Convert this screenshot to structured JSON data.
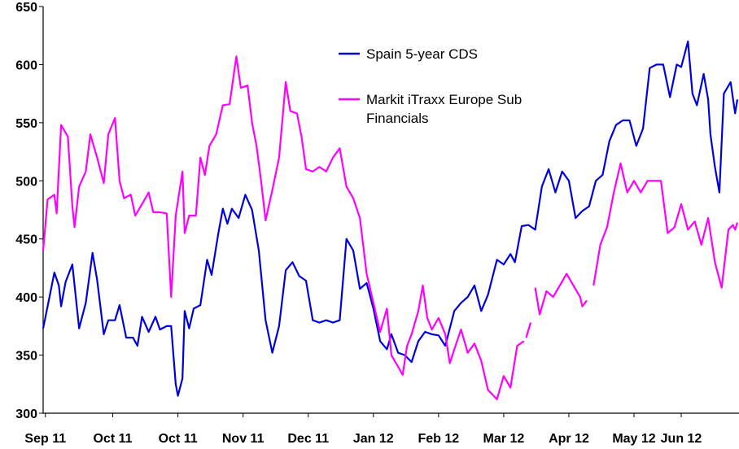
{
  "chart_data": {
    "type": "line",
    "title": "",
    "xlabel": "",
    "ylabel": "",
    "ylim": [
      300,
      650
    ],
    "yticks": [
      300,
      350,
      400,
      450,
      500,
      550,
      600,
      650
    ],
    "xlim": [
      "2011-08-31",
      "2012-06-22"
    ],
    "xtick_labels": [
      "Sep 11",
      "Oct 11",
      "Oct 11",
      "Nov 11",
      "Dec 11",
      "Jan 12",
      "Feb 12",
      "Mar 12",
      "Apr 12",
      "May 12",
      "Jun 12"
    ],
    "xtick_dates": [
      "2011-09-01",
      "2011-10-01",
      "2011-10-30",
      "2011-11-28",
      "2011-12-27",
      "2012-01-25",
      "2012-02-23",
      "2012-03-23",
      "2012-04-21",
      "2012-05-20",
      "2012-06-10"
    ],
    "grid": false,
    "legend_position": "top-right",
    "series": [
      {
        "name": "Spain 5-year CDS",
        "color": "#0000dd",
        "points": [
          [
            "2011-08-31",
            373
          ],
          [
            "2011-09-02",
            392
          ],
          [
            "2011-09-05",
            421
          ],
          [
            "2011-09-07",
            410
          ],
          [
            "2011-09-08",
            392
          ],
          [
            "2011-09-10",
            413
          ],
          [
            "2011-09-13",
            428
          ],
          [
            "2011-09-16",
            373
          ],
          [
            "2011-09-19",
            395
          ],
          [
            "2011-09-22",
            438
          ],
          [
            "2011-09-24",
            415
          ],
          [
            "2011-09-27",
            368
          ],
          [
            "2011-09-29",
            380
          ],
          [
            "2011-10-02",
            380
          ],
          [
            "2011-10-04",
            393
          ],
          [
            "2011-10-07",
            365
          ],
          [
            "2011-10-10",
            365
          ],
          [
            "2011-10-12",
            358
          ],
          [
            "2011-10-14",
            383
          ],
          [
            "2011-10-17",
            370
          ],
          [
            "2011-10-20",
            383
          ],
          [
            "2011-10-22",
            372
          ],
          [
            "2011-10-25",
            375
          ],
          [
            "2011-10-27",
            375
          ],
          [
            "2011-10-29",
            325
          ],
          [
            "2011-10-30",
            315
          ],
          [
            "2011-11-01",
            330
          ],
          [
            "2011-11-02",
            388
          ],
          [
            "2011-11-04",
            373
          ],
          [
            "2011-11-06",
            390
          ],
          [
            "2011-11-09",
            393
          ],
          [
            "2011-11-12",
            432
          ],
          [
            "2011-11-14",
            419
          ],
          [
            "2011-11-17",
            455
          ],
          [
            "2011-11-19",
            476
          ],
          [
            "2011-11-21",
            463
          ],
          [
            "2011-11-23",
            476
          ],
          [
            "2011-11-26",
            468
          ],
          [
            "2011-11-29",
            488
          ],
          [
            "2011-12-02",
            475
          ],
          [
            "2011-12-05",
            440
          ],
          [
            "2011-12-08",
            380
          ],
          [
            "2011-12-11",
            352
          ],
          [
            "2011-12-14",
            375
          ],
          [
            "2011-12-17",
            423
          ],
          [
            "2011-12-20",
            430
          ],
          [
            "2011-12-23",
            418
          ],
          [
            "2011-12-26",
            414
          ],
          [
            "2011-12-29",
            380
          ],
          [
            "2012-01-01",
            378
          ],
          [
            "2012-01-04",
            380
          ],
          [
            "2012-01-07",
            378
          ],
          [
            "2012-01-10",
            380
          ],
          [
            "2012-01-13",
            450
          ],
          [
            "2012-01-16",
            440
          ],
          [
            "2012-01-19",
            407
          ],
          [
            "2012-01-22",
            412
          ],
          [
            "2012-01-25",
            390
          ],
          [
            "2012-01-28",
            362
          ],
          [
            "2012-01-31",
            355
          ],
          [
            "2012-02-02",
            368
          ],
          [
            "2012-02-05",
            352
          ],
          [
            "2012-02-08",
            350
          ],
          [
            "2012-02-11",
            344
          ],
          [
            "2012-02-14",
            362
          ],
          [
            "2012-02-17",
            370
          ],
          [
            "2012-02-20",
            368
          ],
          [
            "2012-02-23",
            367
          ],
          [
            "2012-02-26",
            358
          ],
          [
            "2012-03-01",
            388
          ],
          [
            "2012-03-04",
            395
          ],
          [
            "2012-03-07",
            400
          ],
          [
            "2012-03-10",
            410
          ],
          [
            "2012-03-13",
            388
          ],
          [
            "2012-03-16",
            402
          ],
          [
            "2012-03-20",
            432
          ],
          [
            "2012-03-23",
            428
          ],
          [
            "2012-03-26",
            437
          ],
          [
            "2012-03-28",
            430
          ],
          [
            "2012-03-31",
            461
          ],
          [
            "2012-04-03",
            462
          ],
          [
            "2012-04-06",
            458
          ],
          [
            "2012-04-09",
            495
          ],
          [
            "2012-04-12",
            510
          ],
          [
            "2012-04-15",
            490
          ],
          [
            "2012-04-18",
            508
          ],
          [
            "2012-04-21",
            500
          ],
          [
            "2012-04-24",
            468
          ],
          [
            "2012-04-27",
            474
          ],
          [
            "2012-04-30",
            478
          ],
          [
            "2012-05-03",
            500
          ],
          [
            "2012-05-06",
            505
          ],
          [
            "2012-05-09",
            534
          ],
          [
            "2012-05-12",
            548
          ],
          [
            "2012-05-15",
            552
          ],
          [
            "2012-05-18",
            552
          ],
          [
            "2012-05-21",
            530
          ],
          [
            "2012-05-24",
            545
          ],
          [
            "2012-05-27",
            597
          ],
          [
            "2012-05-30",
            600
          ],
          [
            "2012-06-02",
            600
          ],
          [
            "2012-06-05",
            572
          ],
          [
            "2012-06-08",
            600
          ],
          [
            "2012-06-10",
            598
          ],
          [
            "2012-06-13",
            620
          ],
          [
            "2012-06-15",
            575
          ],
          [
            "2012-06-17",
            565
          ],
          [
            "2012-06-20",
            592
          ],
          [
            "2012-06-22",
            570
          ],
          [
            "2012-06-23",
            540
          ],
          [
            "2012-06-25",
            512
          ],
          [
            "2012-06-27",
            490
          ],
          [
            "2012-06-29",
            575
          ],
          [
            "2012-07-02",
            585
          ],
          [
            "2012-07-04",
            558
          ],
          [
            "2012-07-05",
            570
          ]
        ]
      },
      {
        "name": "Markit iTraxx Europe Sub Financials",
        "color": "#ff00ff",
        "segments": [
          [
            [
              "2011-08-31",
              440
            ],
            [
              "2011-09-02",
              484
            ],
            [
              "2011-09-05",
              488
            ],
            [
              "2011-09-06",
              472
            ],
            [
              "2011-09-08",
              548
            ],
            [
              "2011-09-11",
              538
            ],
            [
              "2011-09-13",
              478
            ],
            [
              "2011-09-14",
              460
            ],
            [
              "2011-09-16",
              495
            ],
            [
              "2011-09-19",
              508
            ],
            [
              "2011-09-21",
              540
            ],
            [
              "2011-09-24",
              520
            ],
            [
              "2011-09-27",
              498
            ],
            [
              "2011-09-29",
              540
            ],
            [
              "2011-10-02",
              554
            ],
            [
              "2011-10-04",
              500
            ],
            [
              "2011-10-06",
              485
            ],
            [
              "2011-10-09",
              488
            ],
            [
              "2011-10-11",
              470
            ],
            [
              "2011-10-14",
              480
            ],
            [
              "2011-10-17",
              490
            ],
            [
              "2011-10-19",
              473
            ],
            [
              "2011-10-22",
              473
            ],
            [
              "2011-10-25",
              472
            ],
            [
              "2011-10-27",
              400
            ],
            [
              "2011-10-29",
              470
            ],
            [
              "2011-11-01",
              508
            ],
            [
              "2011-11-02",
              455
            ],
            [
              "2011-11-04",
              470
            ],
            [
              "2011-11-07",
              470
            ],
            [
              "2011-11-09",
              520
            ],
            [
              "2011-11-11",
              505
            ],
            [
              "2011-11-13",
              530
            ],
            [
              "2011-11-16",
              540
            ],
            [
              "2011-11-19",
              565
            ],
            [
              "2011-11-22",
              566
            ],
            [
              "2011-11-25",
              607
            ],
            [
              "2011-11-27",
              580
            ],
            [
              "2011-11-30",
              582
            ],
            [
              "2011-12-02",
              550
            ],
            [
              "2011-12-04",
              530
            ],
            [
              "2011-12-06",
              500
            ],
            [
              "2011-12-08",
              466
            ],
            [
              "2011-12-11",
              492
            ],
            [
              "2011-12-14",
              520
            ],
            [
              "2011-12-17",
              585
            ],
            [
              "2011-12-19",
              560
            ],
            [
              "2011-12-22",
              558
            ],
            [
              "2011-12-24",
              538
            ],
            [
              "2011-12-26",
              510
            ],
            [
              "2011-12-29",
              508
            ],
            [
              "2012-01-01",
              512
            ],
            [
              "2012-01-04",
              508
            ],
            [
              "2012-01-07",
              520
            ],
            [
              "2012-01-10",
              528
            ],
            [
              "2012-01-13",
              495
            ],
            [
              "2012-01-16",
              485
            ],
            [
              "2012-01-19",
              468
            ],
            [
              "2012-01-22",
              420
            ],
            [
              "2012-01-25",
              395
            ],
            [
              "2012-01-28",
              370
            ],
            [
              "2012-01-31",
              390
            ],
            [
              "2012-02-02",
              350
            ],
            [
              "2012-02-05",
              340
            ],
            [
              "2012-02-07",
              333
            ],
            [
              "2012-02-09",
              358
            ],
            [
              "2012-02-11",
              368
            ],
            [
              "2012-02-14",
              388
            ],
            [
              "2012-02-16",
              410
            ],
            [
              "2012-02-18",
              382
            ],
            [
              "2012-02-20",
              372
            ],
            [
              "2012-02-23",
              382
            ],
            [
              "2012-02-26",
              368
            ],
            [
              "2012-02-28",
              343
            ],
            [
              "2012-03-01",
              355
            ],
            [
              "2012-03-04",
              372
            ],
            [
              "2012-03-07",
              352
            ],
            [
              "2012-03-10",
              360
            ],
            [
              "2012-03-13",
              345
            ],
            [
              "2012-03-16",
              320
            ],
            [
              "2012-03-20",
              312
            ],
            [
              "2012-03-23",
              332
            ],
            [
              "2012-03-26",
              322
            ],
            [
              "2012-03-29",
              358
            ],
            [
              "2012-04-01",
              362
            ]
          ],
          [
            [
              "2012-04-02",
              365
            ],
            [
              "2012-04-04",
              378
            ]
          ],
          [
            [
              "2012-04-06",
              408
            ],
            [
              "2012-04-08",
              385
            ],
            [
              "2012-04-11",
              405
            ],
            [
              "2012-04-14",
              400
            ],
            [
              "2012-04-17",
              410
            ],
            [
              "2012-04-20",
              420
            ],
            [
              "2012-04-23",
              410
            ],
            [
              "2012-04-26",
              400
            ],
            [
              "2012-04-27",
              392
            ],
            [
              "2012-04-29",
              397
            ]
          ],
          [
            [
              "2012-05-02",
              410
            ],
            [
              "2012-05-05",
              445
            ],
            [
              "2012-05-08",
              460
            ],
            [
              "2012-05-11",
              490
            ],
            [
              "2012-05-14",
              515
            ],
            [
              "2012-05-17",
              490
            ],
            [
              "2012-05-20",
              500
            ],
            [
              "2012-05-23",
              490
            ],
            [
              "2012-05-26",
              500
            ],
            [
              "2012-05-29",
              500
            ],
            [
              "2012-06-01",
              500
            ],
            [
              "2012-06-04",
              455
            ],
            [
              "2012-06-07",
              460
            ],
            [
              "2012-06-10",
              480
            ],
            [
              "2012-06-13",
              458
            ],
            [
              "2012-06-16",
              465
            ],
            [
              "2012-06-19",
              445
            ],
            [
              "2012-06-22",
              468
            ],
            [
              "2012-06-25",
              430
            ],
            [
              "2012-06-28",
              408
            ],
            [
              "2012-07-01",
              458
            ],
            [
              "2012-07-03",
              462
            ],
            [
              "2012-07-04",
              458
            ],
            [
              "2012-07-05",
              464
            ]
          ]
        ]
      }
    ]
  }
}
